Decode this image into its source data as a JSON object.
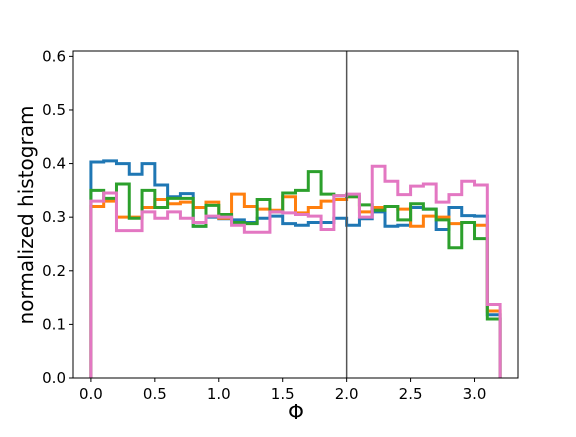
{
  "chart_data": {
    "type": "line",
    "title": "",
    "xlabel": "Φ",
    "ylabel": "normalized histogram",
    "xlim": [
      -0.14,
      3.34
    ],
    "ylim": [
      0.0,
      0.61
    ],
    "x_ticks": [
      "0.0",
      "0.5",
      "1.0",
      "1.5",
      "2.0",
      "2.5",
      "3.0"
    ],
    "x_tick_values": [
      0.0,
      0.5,
      1.0,
      1.5,
      2.0,
      2.5,
      3.0
    ],
    "y_ticks": [
      "0.0",
      "0.1",
      "0.2",
      "0.3",
      "0.4",
      "0.5",
      "0.6"
    ],
    "y_tick_values": [
      0.0,
      0.1,
      0.2,
      0.3,
      0.4,
      0.5,
      0.6
    ],
    "grid": false,
    "legend": "none",
    "vertical_line": {
      "x": 2.0,
      "color": "#555555"
    },
    "bin_edges": [
      0.0,
      0.1,
      0.2,
      0.3,
      0.4,
      0.5,
      0.6,
      0.7,
      0.8,
      0.9,
      1.0,
      1.1,
      1.2,
      1.3,
      1.4,
      1.5,
      1.6,
      1.7,
      1.8,
      1.9,
      2.0,
      2.1,
      2.2,
      2.3,
      2.4,
      2.5,
      2.6,
      2.7,
      2.8,
      2.9,
      3.0,
      3.1,
      3.2
    ],
    "series": [
      {
        "color": "#1f77b4",
        "values": [
          0.403,
          0.405,
          0.4,
          0.38,
          0.4,
          0.36,
          0.338,
          0.344,
          0.283,
          0.3,
          0.297,
          0.295,
          0.29,
          0.298,
          0.302,
          0.288,
          0.285,
          0.29,
          0.29,
          0.298,
          0.285,
          0.297,
          0.31,
          0.283,
          0.285,
          0.318,
          0.315,
          0.277,
          0.318,
          0.303,
          0.302,
          0.118
        ]
      },
      {
        "color": "#ff7f0e",
        "values": [
          0.32,
          0.33,
          0.3,
          0.3,
          0.318,
          0.333,
          0.325,
          0.328,
          0.318,
          0.328,
          0.298,
          0.343,
          0.32,
          0.315,
          0.313,
          0.338,
          0.308,
          0.318,
          0.33,
          0.333,
          0.338,
          0.31,
          0.318,
          0.32,
          0.315,
          0.283,
          0.302,
          0.3,
          0.288,
          0.29,
          0.285,
          0.125
        ]
      },
      {
        "color": "#2ca02c",
        "values": [
          0.35,
          0.335,
          0.362,
          0.298,
          0.35,
          0.318,
          0.335,
          0.335,
          0.283,
          0.322,
          0.305,
          0.29,
          0.288,
          0.333,
          0.31,
          0.345,
          0.35,
          0.385,
          0.343,
          0.34,
          0.338,
          0.323,
          0.313,
          0.32,
          0.295,
          0.325,
          0.315,
          0.295,
          0.243,
          0.29,
          0.26,
          0.11
        ]
      },
      {
        "color": "#e377c2",
        "values": [
          0.33,
          0.345,
          0.275,
          0.275,
          0.31,
          0.298,
          0.31,
          0.298,
          0.29,
          0.302,
          0.3,
          0.285,
          0.272,
          0.272,
          0.31,
          0.308,
          0.305,
          0.302,
          0.277,
          0.34,
          0.343,
          0.3,
          0.395,
          0.367,
          0.342,
          0.358,
          0.362,
          0.328,
          0.342,
          0.367,
          0.36,
          0.137
        ]
      }
    ]
  }
}
